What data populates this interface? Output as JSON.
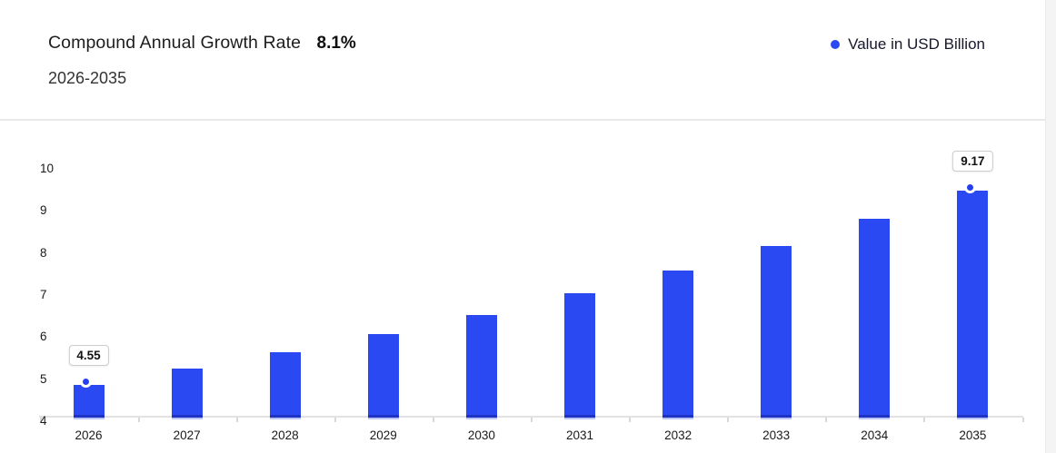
{
  "header": {
    "title": "Compound Annual Growth Rate",
    "cagr_value": "8.1%",
    "subtitle": "2026-2035"
  },
  "legend": {
    "label": "Value in USD Billion",
    "marker_color": "#2a49f2"
  },
  "chart_data": {
    "type": "bar",
    "title": "Compound Annual Growth Rate 8.1%",
    "subtitle": "2026-2035",
    "series_name": "Value in USD Billion",
    "categories": [
      "2026",
      "2027",
      "2028",
      "2029",
      "2030",
      "2031",
      "2032",
      "2033",
      "2034",
      "2035"
    ],
    "values": [
      4.55,
      4.92,
      5.32,
      5.75,
      6.21,
      6.72,
      7.26,
      7.85,
      8.48,
      9.17
    ],
    "xlabel": "",
    "ylabel": "",
    "ylim": [
      4,
      10
    ],
    "yticks": [
      4,
      5,
      6,
      7,
      8,
      9,
      10
    ],
    "grid": false,
    "legend_position": "top-right",
    "bar_color": "#2a49f2",
    "annotations": [
      {
        "category": "2026",
        "text": "4.55"
      },
      {
        "category": "2035",
        "text": "9.17"
      }
    ],
    "marked_categories": [
      "2026",
      "2035"
    ]
  }
}
